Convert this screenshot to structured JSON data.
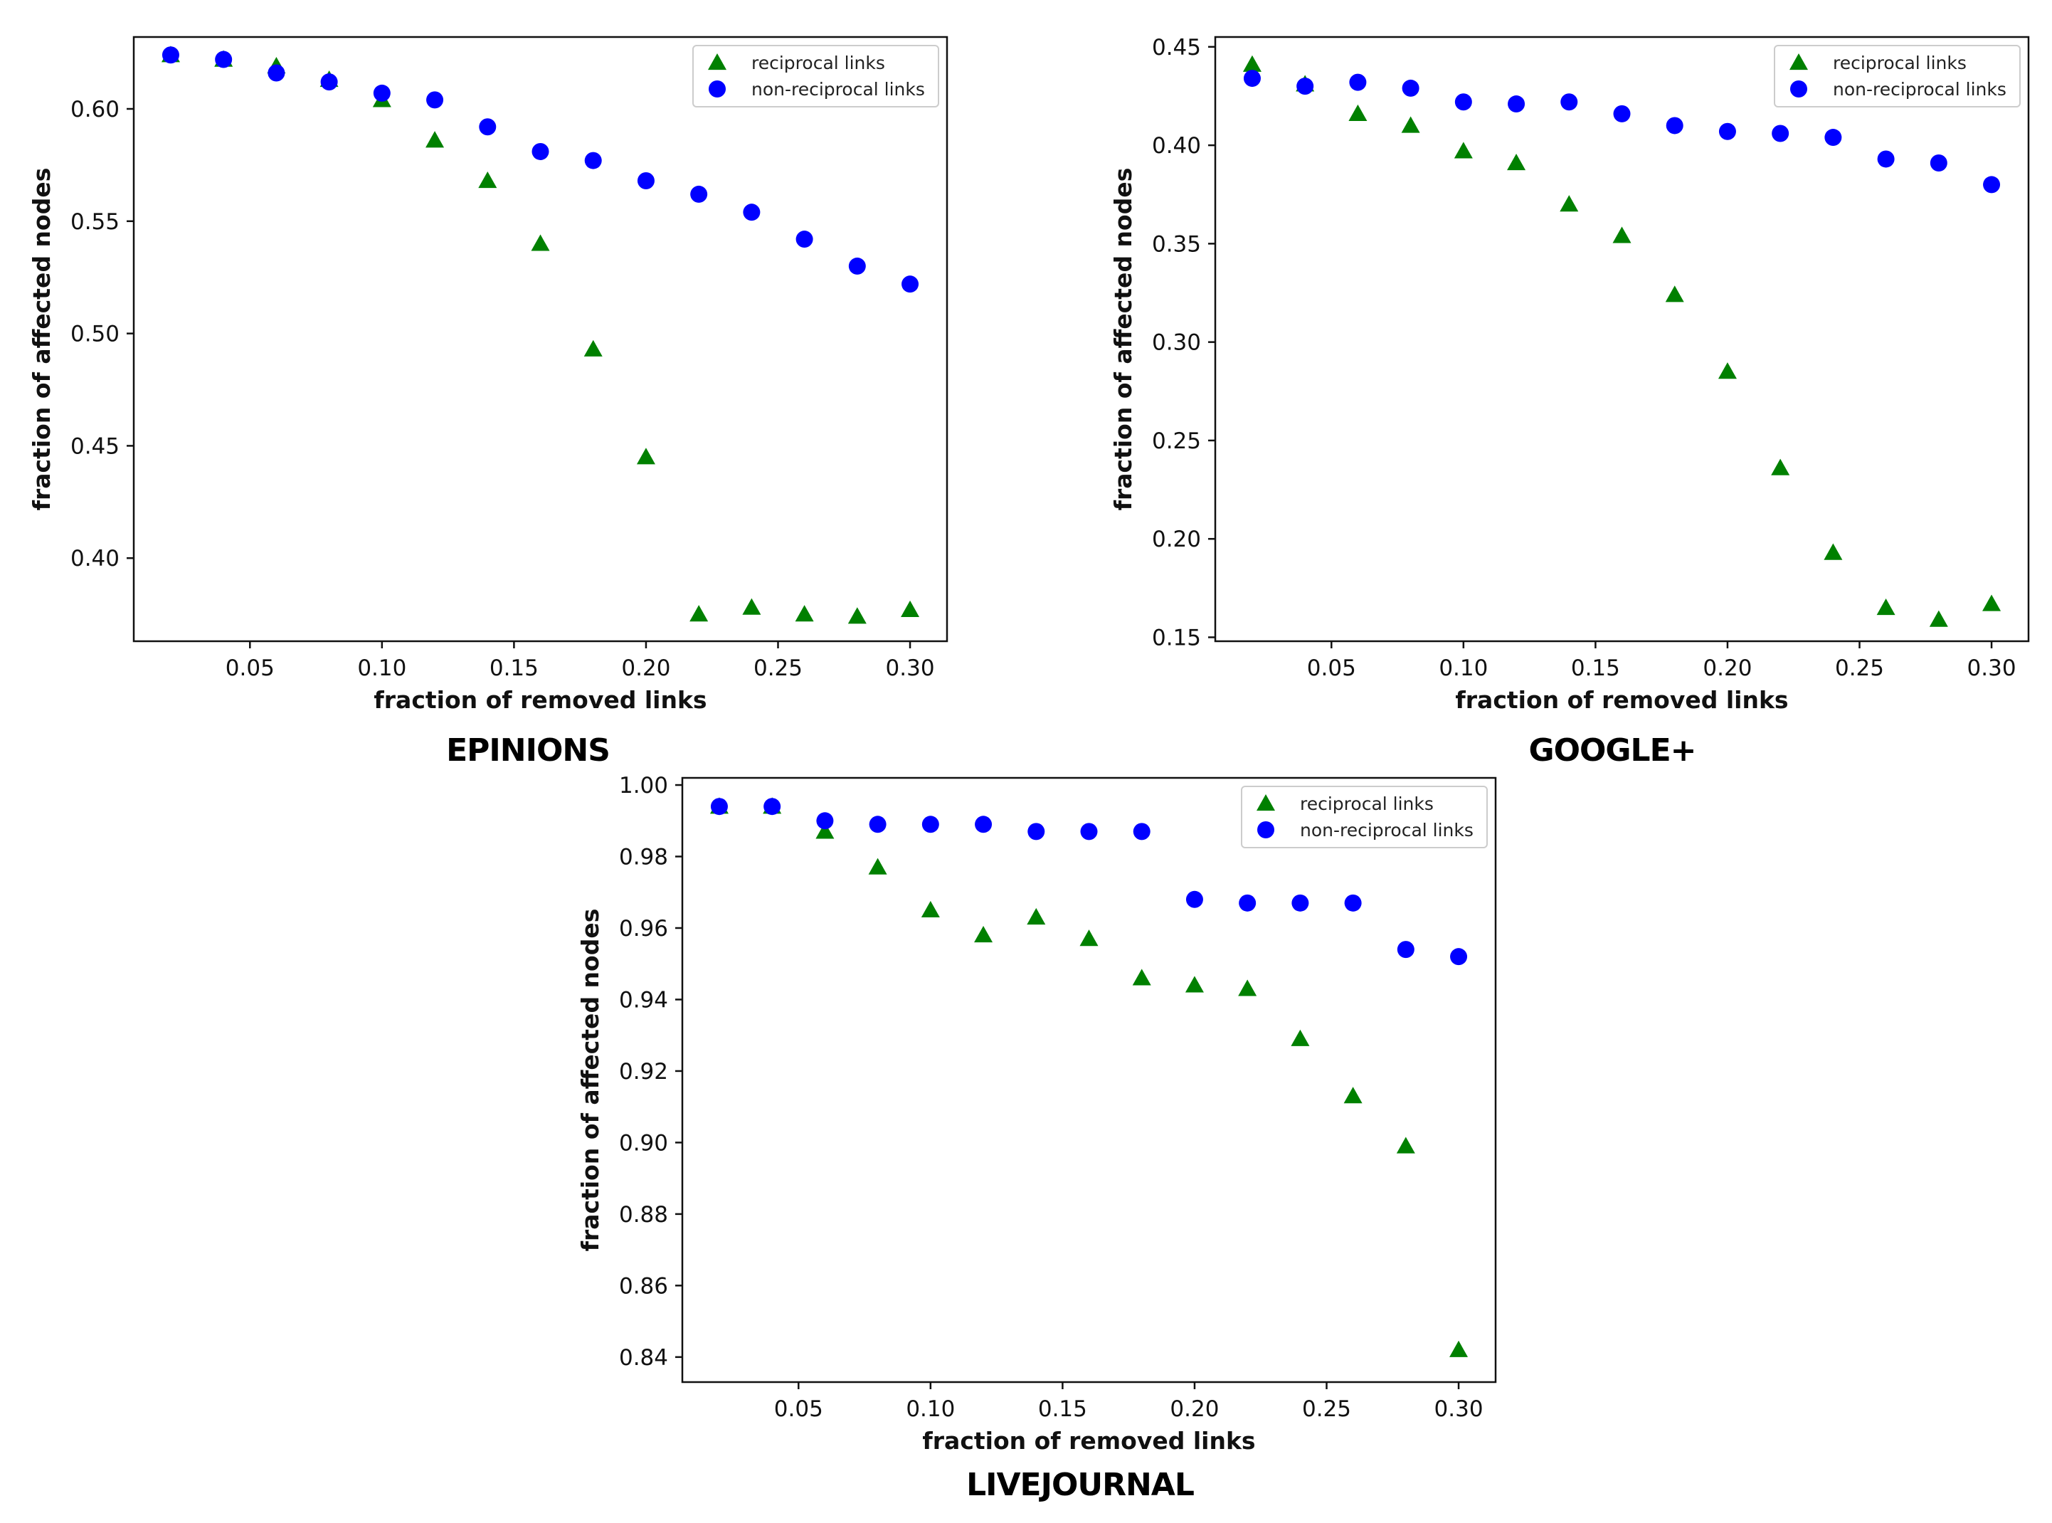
{
  "colors": {
    "reciprocal": "#008000",
    "non_reciprocal": "#0000ff"
  },
  "chart_data": [
    {
      "type": "scatter",
      "dataset_label": "EPINIONS",
      "xlabel": "fraction of removed links",
      "ylabel": "fraction of affected nodes",
      "xlim": [
        0.006,
        0.314
      ],
      "ylim": [
        0.363,
        0.632
      ],
      "xticks": [
        0.05,
        0.1,
        0.15,
        0.2,
        0.25,
        0.3
      ],
      "xtick_labels": [
        "0.05",
        "0.10",
        "0.15",
        "0.20",
        "0.25",
        "0.30"
      ],
      "yticks": [
        0.4,
        0.45,
        0.5,
        0.55,
        0.6
      ],
      "ytick_labels": [
        "0.40",
        "0.45",
        "0.50",
        "0.55",
        "0.60"
      ],
      "legend_position": "top-right",
      "x": [
        0.02,
        0.04,
        0.06,
        0.08,
        0.1,
        0.12,
        0.14,
        0.16,
        0.18,
        0.2,
        0.22,
        0.24,
        0.26,
        0.28,
        0.3
      ],
      "series": [
        {
          "name": "reciprocal links",
          "marker": "triangle",
          "color": "#008000",
          "values": [
            0.624,
            0.622,
            0.619,
            0.613,
            0.604,
            0.586,
            0.568,
            0.54,
            0.493,
            0.445,
            0.375,
            0.378,
            0.375,
            0.374,
            0.377
          ]
        },
        {
          "name": "non-reciprocal links",
          "marker": "circle",
          "color": "#0000ff",
          "values": [
            0.624,
            0.622,
            0.616,
            0.612,
            0.607,
            0.604,
            0.592,
            0.581,
            0.577,
            0.568,
            0.562,
            0.554,
            0.542,
            0.53,
            0.522
          ]
        }
      ]
    },
    {
      "type": "scatter",
      "dataset_label": "GOOGLE+",
      "xlabel": "fraction of removed links",
      "ylabel": "fraction of affected nodes",
      "xlim": [
        0.006,
        0.314
      ],
      "ylim": [
        0.148,
        0.455
      ],
      "xticks": [
        0.05,
        0.1,
        0.15,
        0.2,
        0.25,
        0.3
      ],
      "xtick_labels": [
        "0.05",
        "0.10",
        "0.15",
        "0.20",
        "0.25",
        "0.30"
      ],
      "yticks": [
        0.15,
        0.2,
        0.25,
        0.3,
        0.35,
        0.4,
        0.45
      ],
      "ytick_labels": [
        "0.15",
        "0.20",
        "0.25",
        "0.30",
        "0.35",
        "0.40",
        "0.45"
      ],
      "legend_position": "top-right",
      "x": [
        0.02,
        0.04,
        0.06,
        0.08,
        0.1,
        0.12,
        0.14,
        0.16,
        0.18,
        0.2,
        0.22,
        0.24,
        0.26,
        0.28,
        0.3
      ],
      "series": [
        {
          "name": "reciprocal links",
          "marker": "triangle",
          "color": "#008000",
          "values": [
            0.441,
            0.431,
            0.416,
            0.41,
            0.397,
            0.391,
            0.37,
            0.354,
            0.324,
            0.285,
            0.236,
            0.193,
            0.165,
            0.159,
            0.167
          ]
        },
        {
          "name": "non-reciprocal links",
          "marker": "circle",
          "color": "#0000ff",
          "values": [
            0.434,
            0.43,
            0.432,
            0.429,
            0.422,
            0.421,
            0.422,
            0.416,
            0.41,
            0.407,
            0.406,
            0.404,
            0.393,
            0.391,
            0.38
          ]
        }
      ]
    },
    {
      "type": "scatter",
      "dataset_label": "LIVEJOURNAL",
      "xlabel": "fraction of removed links",
      "ylabel": "fraction of affected nodes",
      "xlim": [
        0.006,
        0.314
      ],
      "ylim": [
        0.833,
        1.002
      ],
      "xticks": [
        0.05,
        0.1,
        0.15,
        0.2,
        0.25,
        0.3
      ],
      "xtick_labels": [
        "0.05",
        "0.10",
        "0.15",
        "0.20",
        "0.25",
        "0.30"
      ],
      "yticks": [
        0.84,
        0.86,
        0.88,
        0.9,
        0.92,
        0.94,
        0.96,
        0.98,
        1.0
      ],
      "ytick_labels": [
        "0.84",
        "0.86",
        "0.88",
        "0.90",
        "0.92",
        "0.94",
        "0.96",
        "0.98",
        "1.00"
      ],
      "legend_position": "top-right",
      "x": [
        0.02,
        0.04,
        0.06,
        0.08,
        0.1,
        0.12,
        0.14,
        0.16,
        0.18,
        0.2,
        0.22,
        0.24,
        0.26,
        0.28,
        0.3
      ],
      "series": [
        {
          "name": "reciprocal links",
          "marker": "triangle",
          "color": "#008000",
          "values": [
            0.994,
            0.994,
            0.987,
            0.977,
            0.965,
            0.958,
            0.963,
            0.957,
            0.946,
            0.944,
            0.943,
            0.929,
            0.913,
            0.899,
            0.842
          ]
        },
        {
          "name": "non-reciprocal links",
          "marker": "circle",
          "color": "#0000ff",
          "values": [
            0.994,
            0.994,
            0.99,
            0.989,
            0.989,
            0.989,
            0.987,
            0.987,
            0.987,
            0.968,
            0.967,
            0.967,
            0.967,
            0.954,
            0.952
          ]
        }
      ]
    }
  ]
}
